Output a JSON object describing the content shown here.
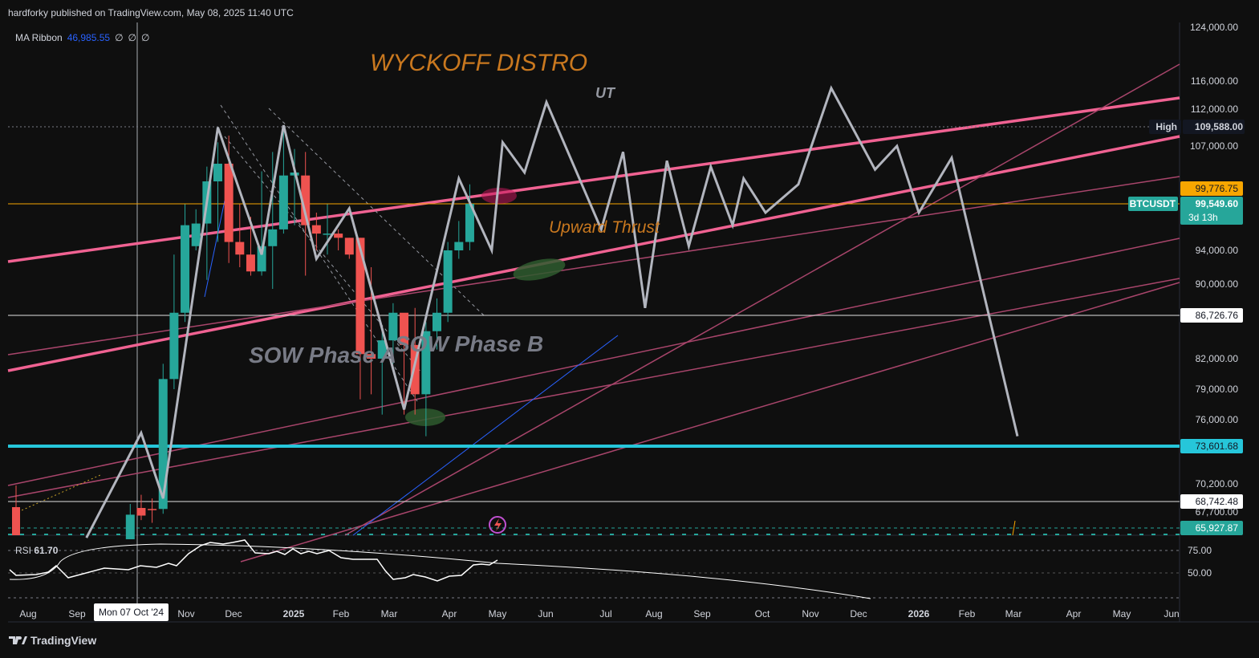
{
  "header": {
    "publisher": "hardforky published on TradingView.com, May 08, 2025 11:40 UTC",
    "indicator_name": "MA Ribbon",
    "indicator_value": "46,985.55",
    "indicator_extra": [
      "∅",
      "∅",
      "∅"
    ]
  },
  "annotations": {
    "title": "WYCKOFF DISTRO",
    "ut": "UT",
    "upward_thrust": "Upward Thrust",
    "sow_phase_a": "SOW Phase A",
    "sow_phase_b": "SOW Phase B"
  },
  "price_axis": {
    "ticks": [
      "124,000.00",
      "116,000.00",
      "112,000.00",
      "107,000.00",
      "94,000.00",
      "90,000.00",
      "82,000.00",
      "79,000.00",
      "76,000.00",
      "70,200.00",
      "67,700.00"
    ],
    "labels": {
      "high_tag": "High",
      "high_value": "109,588.00",
      "orange_value": "99,776.75",
      "symbol": "BTCUSDT",
      "current_value": "99,549.60",
      "countdown": "3d 13h",
      "level_86": "86,726.76",
      "level_73": "73,601.68",
      "level_68": "68,742.48",
      "level_65": "65,927.87"
    }
  },
  "time_axis": {
    "labels": [
      "Aug",
      "Sep",
      "Nov",
      "Dec",
      "2025",
      "Feb",
      "Mar",
      "Apr",
      "May",
      "Jun",
      "Jul",
      "Aug",
      "Sep",
      "Oct",
      "Nov",
      "Dec",
      "2026",
      "Feb",
      "Mar",
      "Apr",
      "May",
      "Jun"
    ],
    "cursor_date": "Mon 07 Oct '24"
  },
  "rsi": {
    "label": "RSI",
    "value": "61.70",
    "ticks": [
      "75.00",
      "50.00"
    ]
  },
  "footer": {
    "brand": "TradingView"
  },
  "colors": {
    "up": "#26a69a",
    "down": "#ef5350",
    "pink": "#f06292",
    "cyan": "#26c6da",
    "orange": "#c9781f",
    "gray_path": "#b2b5be"
  },
  "chart_data": {
    "type": "candlestick",
    "symbol": "BTCUSDT",
    "interval": "weekly",
    "ylim": [
      62000,
      125000
    ],
    "candles": [
      {
        "date": "2024-10-14",
        "open": 62000,
        "close": 67400,
        "high": 68500,
        "low": 62000
      },
      {
        "date": "2024-10-21",
        "open": 68100,
        "close": 67300,
        "high": 69300,
        "low": 66800
      },
      {
        "date": "2024-10-28",
        "open": 68000,
        "close": 67900,
        "high": 69000,
        "low": 66500
      },
      {
        "date": "2024-11-04",
        "open": 68000,
        "close": 80000,
        "high": 81500,
        "low": 67500
      },
      {
        "date": "2024-11-11",
        "open": 80000,
        "close": 87000,
        "high": 93500,
        "low": 79000
      },
      {
        "date": "2024-11-18",
        "open": 87000,
        "close": 97000,
        "high": 99500,
        "low": 86000
      },
      {
        "date": "2024-11-25",
        "open": 94500,
        "close": 97200,
        "high": 98900,
        "low": 94000
      },
      {
        "date": "2024-12-02",
        "open": 97200,
        "close": 101000,
        "high": 103500,
        "low": 90500
      },
      {
        "date": "2024-12-09",
        "open": 101000,
        "close": 104000,
        "high": 107500,
        "low": 95000
      },
      {
        "date": "2024-12-16",
        "open": 104000,
        "close": 95000,
        "high": 108400,
        "low": 92500
      },
      {
        "date": "2024-12-23",
        "open": 95000,
        "close": 93500,
        "high": 99500,
        "low": 92000
      },
      {
        "date": "2024-12-30",
        "open": 93500,
        "close": 91500,
        "high": 98000,
        "low": 91000
      },
      {
        "date": "2025-01-06",
        "open": 91500,
        "close": 94500,
        "high": 102700,
        "low": 91000
      },
      {
        "date": "2025-01-13",
        "open": 94500,
        "close": 96500,
        "high": 106000,
        "low": 89500
      },
      {
        "date": "2025-01-20",
        "open": 96500,
        "close": 102000,
        "high": 109588,
        "low": 96000
      },
      {
        "date": "2025-01-27",
        "open": 102000,
        "close": 102500,
        "high": 106500,
        "low": 97000
      },
      {
        "date": "2025-02-03",
        "open": 102000,
        "close": 97000,
        "high": 106000,
        "low": 91000
      },
      {
        "date": "2025-02-10",
        "open": 97000,
        "close": 96000,
        "high": 98500,
        "low": 94000
      },
      {
        "date": "2025-02-17",
        "open": 96000,
        "close": 96000,
        "high": 99500,
        "low": 93500
      },
      {
        "date": "2025-02-24",
        "open": 96000,
        "close": 95500,
        "high": 96500,
        "low": 94000
      },
      {
        "date": "2025-03-03",
        "open": 95500,
        "close": 93500,
        "high": 95500,
        "low": 93000
      },
      {
        "date": "2025-03-10",
        "open": 95500,
        "close": 82500,
        "high": 95500,
        "low": 78000
      },
      {
        "date": "2025-03-17",
        "open": 82500,
        "close": 82000,
        "high": 92000,
        "low": 78500
      },
      {
        "date": "2025-03-24",
        "open": 82000,
        "close": 84000,
        "high": 85000,
        "low": 76500
      },
      {
        "date": "2025-03-31",
        "open": 84000,
        "close": 87000,
        "high": 88000,
        "low": 81500
      },
      {
        "date": "2025-04-07",
        "open": 87000,
        "close": 83500,
        "high": 86500,
        "low": 76500
      },
      {
        "date": "2025-04-14",
        "open": 83500,
        "close": 78500,
        "high": 87500,
        "low": 76500
      },
      {
        "date": "2025-04-21",
        "open": 78500,
        "close": 85000,
        "high": 86000,
        "low": 74500
      },
      {
        "date": "2025-04-28",
        "open": 85000,
        "close": 87000,
        "high": 88500,
        "low": 83000
      },
      {
        "date": "2025-05-05",
        "open": 87000,
        "close": 94000,
        "high": 95000,
        "low": 86000
      },
      {
        "date": "2025-05-12",
        "open": 94000,
        "close": 95000,
        "high": 97500,
        "low": 93000
      },
      {
        "date": "2025-05-19",
        "open": 95000,
        "close": 99549.6,
        "high": 100500,
        "low": 94000
      }
    ],
    "horizontal_levels": [
      109588,
      99776.75,
      86726.76,
      73601.68,
      68742.48,
      65927.87
    ],
    "projected_path": [
      {
        "date": "2024-09-16",
        "price": 62500
      },
      {
        "date": "2024-10-21",
        "price": 74800
      },
      {
        "date": "2024-11-04",
        "price": 69000
      },
      {
        "date": "2024-12-09",
        "price": 109500
      },
      {
        "date": "2025-01-06",
        "price": 93500
      },
      {
        "date": "2025-01-20",
        "price": 109800
      },
      {
        "date": "2025-02-10",
        "price": 93000
      },
      {
        "date": "2025-03-03",
        "price": 99000
      },
      {
        "date": "2025-04-07",
        "price": 77000
      },
      {
        "date": "2025-05-12",
        "price": 101500
      },
      {
        "date": "2025-06-02",
        "price": 94000
      },
      {
        "date": "2025-06-09",
        "price": 107500
      },
      {
        "date": "2025-06-23",
        "price": 102500
      },
      {
        "date": "2025-07-07",
        "price": 113000
      },
      {
        "date": "2025-08-11",
        "price": 96500
      },
      {
        "date": "2025-08-25",
        "price": 106000
      },
      {
        "date": "2025-09-08",
        "price": 87500
      },
      {
        "date": "2025-09-22",
        "price": 104500
      },
      {
        "date": "2025-10-06",
        "price": 94500
      },
      {
        "date": "2025-10-20",
        "price": 103500
      },
      {
        "date": "2025-11-03",
        "price": 97000
      },
      {
        "date": "2025-11-10",
        "price": 101500
      },
      {
        "date": "2025-11-24",
        "price": 98500
      },
      {
        "date": "2025-12-15",
        "price": 100500
      },
      {
        "date": "2026-01-05",
        "price": 115000
      },
      {
        "date": "2026-02-02",
        "price": 103000
      },
      {
        "date": "2026-02-16",
        "price": 107000
      },
      {
        "date": "2026-03-02",
        "price": 98500
      },
      {
        "date": "2026-03-23",
        "price": 105000
      },
      {
        "date": "2026-05-04",
        "price": 74500
      }
    ],
    "rsi_value": 61.7,
    "rsi_ticks": [
      75,
      50
    ]
  }
}
